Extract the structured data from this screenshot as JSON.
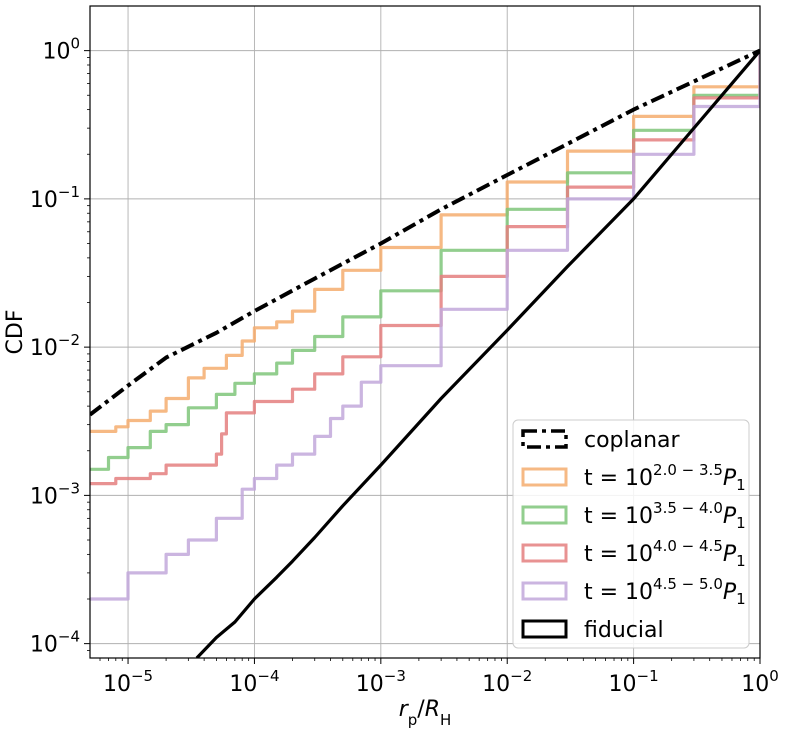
{
  "chart_data": {
    "type": "line",
    "title": "",
    "xlabel": {
      "base": "r",
      "base_sub": "p",
      "sep": "/",
      "base2": "R",
      "base2_sub": "H"
    },
    "ylabel": "CDF",
    "x_scale": "log",
    "y_scale": "log",
    "xlim": [
      5e-06,
      1
    ],
    "ylim": [
      8e-05,
      2
    ],
    "grid": true,
    "legend_position": "lower-right",
    "x_ticks": [
      {
        "value": 1e-05,
        "base": "10",
        "exp": "−5"
      },
      {
        "value": 0.0001,
        "base": "10",
        "exp": "−4"
      },
      {
        "value": 0.001,
        "base": "10",
        "exp": "−3"
      },
      {
        "value": 0.01,
        "base": "10",
        "exp": "−2"
      },
      {
        "value": 0.1,
        "base": "10",
        "exp": "−1"
      },
      {
        "value": 1,
        "base": "10",
        "exp": "0"
      }
    ],
    "y_ticks": [
      {
        "value": 0.0001,
        "base": "10",
        "exp": "−4"
      },
      {
        "value": 0.001,
        "base": "10",
        "exp": "−3"
      },
      {
        "value": 0.01,
        "base": "10",
        "exp": "−2"
      },
      {
        "value": 0.1,
        "base": "10",
        "exp": "−1"
      },
      {
        "value": 1,
        "base": "10",
        "exp": "0"
      }
    ],
    "series": [
      {
        "id": "coplanar",
        "legend": {
          "plain": "coplanar"
        },
        "color": "#000000",
        "style": "dashdot",
        "opacity": 1,
        "x": [
          5e-06,
          1e-05,
          2e-05,
          5e-05,
          0.0001,
          0.0003,
          0.001,
          0.003,
          0.01,
          0.03,
          0.1,
          0.3,
          1
        ],
        "y": [
          0.0035,
          0.0055,
          0.0085,
          0.0125,
          0.0175,
          0.029,
          0.05,
          0.085,
          0.145,
          0.235,
          0.4,
          0.62,
          1.0
        ]
      },
      {
        "id": "t-2.0-3.5",
        "legend": {
          "prefix": "t = 10",
          "exp": "2.0 − 3.5",
          "suffix": "P",
          "suffix_sub": "1"
        },
        "color": "#f5ad6f",
        "style": "solid",
        "opacity": 0.85,
        "x": [
          5e-06,
          8e-06,
          1e-05,
          1.5e-05,
          2e-05,
          3e-05,
          4e-05,
          6e-05,
          8e-05,
          0.0001,
          0.00015,
          0.0002,
          0.0003,
          0.0005,
          0.001,
          0.003,
          0.01,
          0.03,
          0.1,
          0.3,
          1
        ],
        "y": [
          0.0027,
          0.0029,
          0.0032,
          0.0037,
          0.0045,
          0.0062,
          0.0072,
          0.0088,
          0.011,
          0.0135,
          0.0148,
          0.0175,
          0.0245,
          0.033,
          0.047,
          0.078,
          0.13,
          0.21,
          0.36,
          0.57,
          1.0
        ]
      },
      {
        "id": "t-3.5-4.0",
        "legend": {
          "prefix": "t = 10",
          "exp": "3.5 − 4.0",
          "suffix": "P",
          "suffix_sub": "1"
        },
        "color": "#7fc57a",
        "style": "solid",
        "opacity": 0.85,
        "x": [
          5e-06,
          7e-06,
          1e-05,
          1.5e-05,
          2e-05,
          3e-05,
          5e-05,
          7e-05,
          0.0001,
          0.00015,
          0.0002,
          0.0003,
          0.0005,
          0.001,
          0.003,
          0.01,
          0.03,
          0.1,
          0.3,
          1
        ],
        "y": [
          0.0015,
          0.0018,
          0.0021,
          0.0027,
          0.003,
          0.0039,
          0.0048,
          0.0057,
          0.0066,
          0.0078,
          0.0095,
          0.0118,
          0.016,
          0.024,
          0.045,
          0.085,
          0.15,
          0.29,
          0.5,
          1.0
        ]
      },
      {
        "id": "t-4.0-4.5",
        "legend": {
          "prefix": "t = 10",
          "exp": "4.0 − 4.5",
          "suffix": "P",
          "suffix_sub": "1"
        },
        "color": "#e47f7f",
        "style": "solid",
        "opacity": 0.85,
        "x": [
          5e-06,
          8e-06,
          1e-05,
          1.5e-05,
          2e-05,
          3e-05,
          5e-05,
          5.5e-05,
          6e-05,
          0.0001,
          0.0002,
          0.0003,
          0.0005,
          0.001,
          0.003,
          0.01,
          0.03,
          0.1,
          0.3,
          1
        ],
        "y": [
          0.0012,
          0.0013,
          0.0013,
          0.0014,
          0.0016,
          0.0016,
          0.0019,
          0.0026,
          0.0036,
          0.0043,
          0.0052,
          0.0066,
          0.0086,
          0.014,
          0.03,
          0.065,
          0.12,
          0.25,
          0.48,
          1.0
        ]
      },
      {
        "id": "t-4.5-5.0",
        "legend": {
          "prefix": "t = 10",
          "exp": "4.5 − 5.0",
          "suffix": "P",
          "suffix_sub": "1"
        },
        "color": "#c2a8da",
        "style": "solid",
        "opacity": 0.85,
        "x": [
          5e-06,
          1e-05,
          2e-05,
          3e-05,
          5e-05,
          8e-05,
          0.0001,
          0.00015,
          0.0002,
          0.0003,
          0.0004,
          0.0005,
          0.0007,
          0.001,
          0.003,
          0.01,
          0.03,
          0.1,
          0.3,
          1
        ],
        "y": [
          0.0002,
          0.0003,
          0.0004,
          0.0005,
          0.0007,
          0.0011,
          0.0013,
          0.0016,
          0.0019,
          0.0025,
          0.0033,
          0.004,
          0.0058,
          0.0075,
          0.018,
          0.045,
          0.1,
          0.2,
          0.42,
          1.0
        ]
      },
      {
        "id": "fiducial",
        "legend": {
          "plain": "fiducial"
        },
        "color": "#000000",
        "style": "solid",
        "opacity": 1,
        "x": [
          3.5e-05,
          5e-05,
          7e-05,
          0.0001,
          0.00015,
          0.0002,
          0.0003,
          0.0005,
          0.001,
          0.003,
          0.01,
          0.03,
          0.1,
          0.3,
          1
        ],
        "y": [
          8e-05,
          0.00011,
          0.00014,
          0.0002,
          0.00028,
          0.00036,
          0.00052,
          0.00085,
          0.0016,
          0.0045,
          0.013,
          0.035,
          0.1,
          0.3,
          1.0
        ]
      }
    ]
  }
}
